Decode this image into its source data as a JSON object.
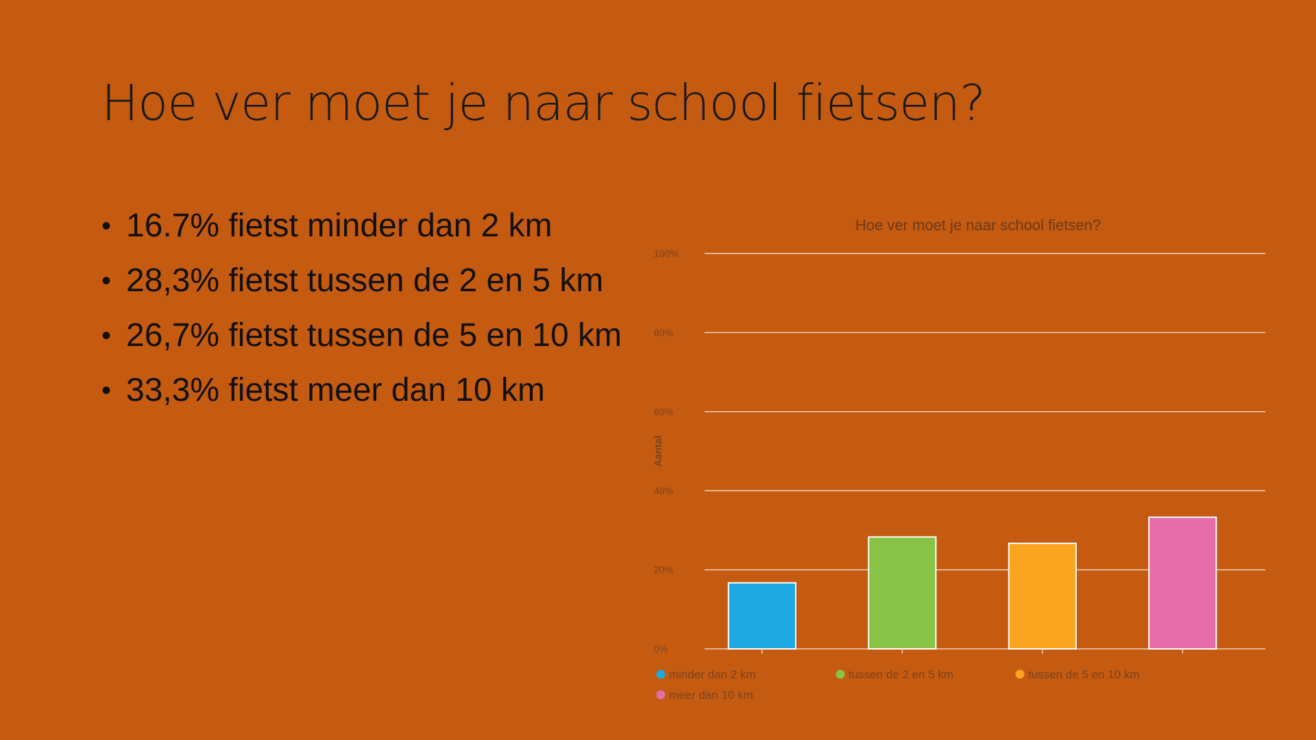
{
  "slide": {
    "title": "Hoe ver moet je naar school fietsen?",
    "bullets": [
      "16.7% fietst minder dan 2 km",
      "28,3% fietst tussen de 2 en 5 km",
      "26,7% fietst tussen de 5 en 10 km",
      "33,3% fietst meer dan 10 km"
    ],
    "bullet_glyph": "•"
  },
  "colors": {
    "background": "#C55A11",
    "gridline": "#F2D2BC",
    "bar_stroke": "#FFFFFF"
  },
  "chart_data": {
    "type": "bar",
    "title": "Hoe ver moet je naar school fietsen?",
    "ylabel": "Aantal",
    "ylim": [
      0,
      100
    ],
    "yticks": [
      0,
      20,
      40,
      60,
      80,
      100
    ],
    "ytick_labels": [
      "0%",
      "20%",
      "40%",
      "60%",
      "80%",
      "100%"
    ],
    "grid": true,
    "legend_position": "bottom",
    "categories": [
      "minder dan 2 km",
      "tussen de 2 en 5 km",
      "tussen de 5 en 10 km",
      "meer dan 10 km"
    ],
    "values": [
      16.7,
      28.3,
      26.7,
      33.3
    ],
    "series_colors": [
      "#1FA9E1",
      "#86C346",
      "#FBA420",
      "#E56EA8"
    ]
  }
}
